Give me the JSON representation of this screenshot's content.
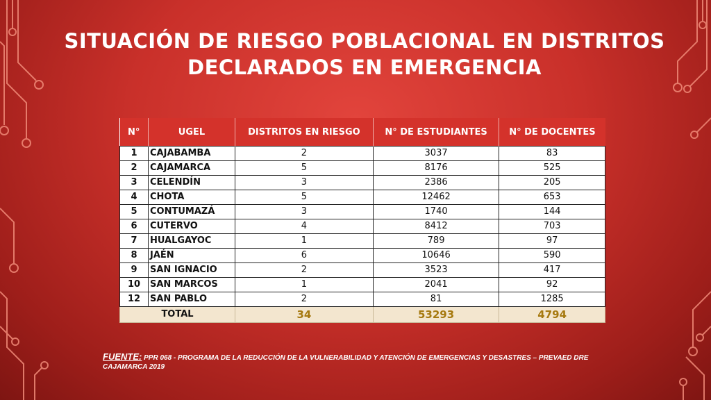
{
  "slide": {
    "title_line1": "SITUACIÓN DE RIESGO POBLACIONAL EN DISTRITOS",
    "title_line2": "DECLARADOS EN EMERGENCIA"
  },
  "table": {
    "headers": [
      "N°",
      "UGEL",
      "DISTRITOS EN RIESGO",
      "N° DE ESTUDIANTES",
      "N° DE DOCENTES"
    ],
    "rows": [
      {
        "n": "1",
        "ugel": "CAJABAMBA",
        "distritos": "2",
        "estudiantes": "3037",
        "docentes": "83"
      },
      {
        "n": "2",
        "ugel": "CAJAMARCA",
        "distritos": "5",
        "estudiantes": "8176",
        "docentes": "525"
      },
      {
        "n": "3",
        "ugel": "CELENDÍN",
        "distritos": "3",
        "estudiantes": "2386",
        "docentes": "205"
      },
      {
        "n": "4",
        "ugel": "CHOTA",
        "distritos": "5",
        "estudiantes": "12462",
        "docentes": "653"
      },
      {
        "n": "5",
        "ugel": "CONTUMAZÁ",
        "distritos": "3",
        "estudiantes": "1740",
        "docentes": "144"
      },
      {
        "n": "6",
        "ugel": "CUTERVO",
        "distritos": "4",
        "estudiantes": "8412",
        "docentes": "703"
      },
      {
        "n": "7",
        "ugel": "HUALGAYOC",
        "distritos": "1",
        "estudiantes": "789",
        "docentes": "97"
      },
      {
        "n": "8",
        "ugel": "JAÉN",
        "distritos": "6",
        "estudiantes": "10646",
        "docentes": "590"
      },
      {
        "n": "9",
        "ugel": "SAN IGNACIO",
        "distritos": "2",
        "estudiantes": "3523",
        "docentes": "417"
      },
      {
        "n": "10",
        "ugel": "SAN MARCOS",
        "distritos": "1",
        "estudiantes": "2041",
        "docentes": "92"
      },
      {
        "n": "12",
        "ugel": "SAN PABLO",
        "distritos": "2",
        "estudiantes": "81",
        "docentes": "1285"
      }
    ],
    "total": {
      "label": "TOTAL",
      "distritos": "34",
      "estudiantes": "53293",
      "docentes": "4794"
    }
  },
  "source": {
    "label": "FUENTE:",
    "text": " PPR 068 - PROGRAMA DE LA REDUCCIÓN DE LA VULNERABILIDAD Y ATENCIÓN DE EMERGENCIAS Y DESASTRES – PREVAED DRE CAJAMARCA 2019"
  },
  "colors": {
    "background": "#c9302a",
    "header": "#d4322b",
    "total_row": "#f3e6cf",
    "total_value": "#a6790f",
    "circuit": "#f08a78"
  }
}
